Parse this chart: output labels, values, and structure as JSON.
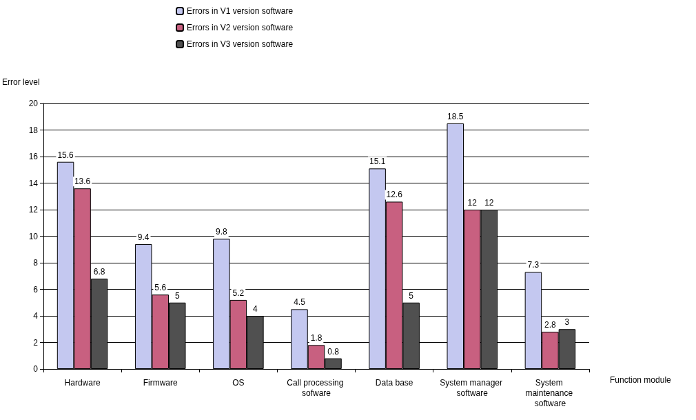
{
  "chart_data": {
    "type": "bar",
    "xlabel": "Function module",
    "ylabel": "Error level",
    "categories": [
      "Hardware",
      "Firmware",
      "OS",
      "Call processing sofware",
      "Data base",
      "System manager software",
      "System maintenance software"
    ],
    "series": [
      {
        "name": "Errors in V1 version software",
        "color": "#c4c8f0",
        "values": [
          15.6,
          9.4,
          9.8,
          4.5,
          15.1,
          18.5,
          7.3
        ]
      },
      {
        "name": "Errors in V2 version software",
        "color": "#c86080",
        "values": [
          13.6,
          5.6,
          5.2,
          1.8,
          12.6,
          12,
          2.8
        ]
      },
      {
        "name": "Errors in V3 version software",
        "color": "#505050",
        "values": [
          6.8,
          5,
          4,
          0.8,
          5,
          12,
          3
        ]
      }
    ],
    "ylim": [
      0,
      20
    ],
    "yticks": [
      0,
      2,
      4,
      6,
      8,
      10,
      12,
      14,
      16,
      18,
      20
    ],
    "grid": "y",
    "legend": "top",
    "data_labels": true
  }
}
